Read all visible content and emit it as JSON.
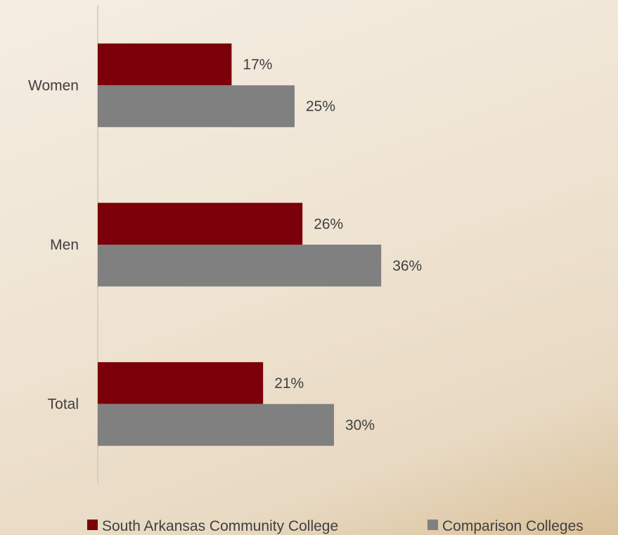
{
  "chart_data": {
    "type": "bar",
    "orientation": "horizontal",
    "categories": [
      "Women",
      "Men",
      "Total"
    ],
    "series": [
      {
        "name": "South Arkansas Community College",
        "values": [
          17,
          26,
          21
        ],
        "labels": [
          "17%",
          "26%",
          "21%"
        ],
        "color": "#7b0009"
      },
      {
        "name": "Comparison Colleges",
        "values": [
          25,
          36,
          30
        ],
        "labels": [
          "25%",
          "36%",
          "30%"
        ],
        "color": "#808080"
      }
    ],
    "xlim": [
      0,
      90
    ],
    "unit": "%",
    "grid": false,
    "legend_position": "bottom"
  }
}
